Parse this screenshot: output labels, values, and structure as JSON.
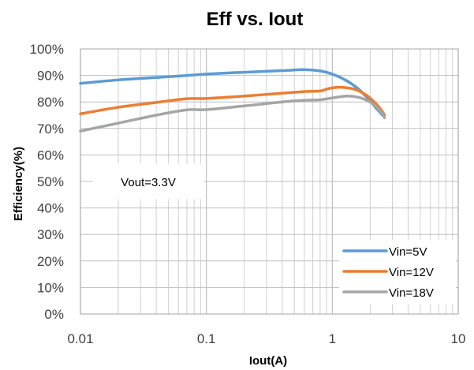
{
  "chart_data": {
    "type": "line",
    "title": "Eff vs. Iout",
    "xlabel": "Iout(A)",
    "ylabel": "Efficiency(%)",
    "x_scale": "log",
    "xlim": [
      0.01,
      10
    ],
    "ylim": [
      0,
      100
    ],
    "x_ticks": [
      "0.01",
      "0.1",
      "1",
      "10"
    ],
    "y_ticks": [
      "0%",
      "10%",
      "20%",
      "30%",
      "40%",
      "50%",
      "60%",
      "70%",
      "80%",
      "90%",
      "100%"
    ],
    "grid": true,
    "legend_position": "bottom-right",
    "annotation": "Vout=3.3V",
    "series": [
      {
        "name": "Vin=5V",
        "color": "#5B9BD5",
        "points": [
          [
            0.01,
            87
          ],
          [
            0.02,
            88.3
          ],
          [
            0.05,
            89.5
          ],
          [
            0.1,
            90.5
          ],
          [
            0.2,
            91.2
          ],
          [
            0.4,
            91.8
          ],
          [
            0.6,
            92.2
          ],
          [
            0.8,
            91.7
          ],
          [
            1.0,
            90.5
          ],
          [
            1.3,
            88
          ],
          [
            1.6,
            85
          ],
          [
            1.9,
            81.5
          ],
          [
            2.2,
            78
          ],
          [
            2.5,
            75
          ]
        ]
      },
      {
        "name": "Vin=12V",
        "color": "#ED7D31",
        "points": [
          [
            0.01,
            75.5
          ],
          [
            0.02,
            78
          ],
          [
            0.04,
            79.8
          ],
          [
            0.07,
            81.2
          ],
          [
            0.1,
            81.3
          ],
          [
            0.2,
            82.2
          ],
          [
            0.4,
            83.3
          ],
          [
            0.6,
            83.9
          ],
          [
            0.8,
            84.1
          ],
          [
            0.9,
            84.8
          ],
          [
            1.0,
            85.3
          ],
          [
            1.2,
            85.5
          ],
          [
            1.5,
            84.8
          ],
          [
            1.8,
            83
          ],
          [
            2.1,
            80.5
          ],
          [
            2.4,
            77.5
          ],
          [
            2.6,
            75
          ]
        ]
      },
      {
        "name": "Vin=18V",
        "color": "#A5A5A5",
        "points": [
          [
            0.01,
            69
          ],
          [
            0.02,
            72
          ],
          [
            0.04,
            75
          ],
          [
            0.07,
            77
          ],
          [
            0.1,
            77.1
          ],
          [
            0.2,
            78.5
          ],
          [
            0.4,
            80
          ],
          [
            0.6,
            80.6
          ],
          [
            0.8,
            80.8
          ],
          [
            1.0,
            81.5
          ],
          [
            1.3,
            82.2
          ],
          [
            1.6,
            81.8
          ],
          [
            1.9,
            80.5
          ],
          [
            2.2,
            78.5
          ],
          [
            2.5,
            75.5
          ],
          [
            2.6,
            74
          ]
        ]
      }
    ]
  }
}
